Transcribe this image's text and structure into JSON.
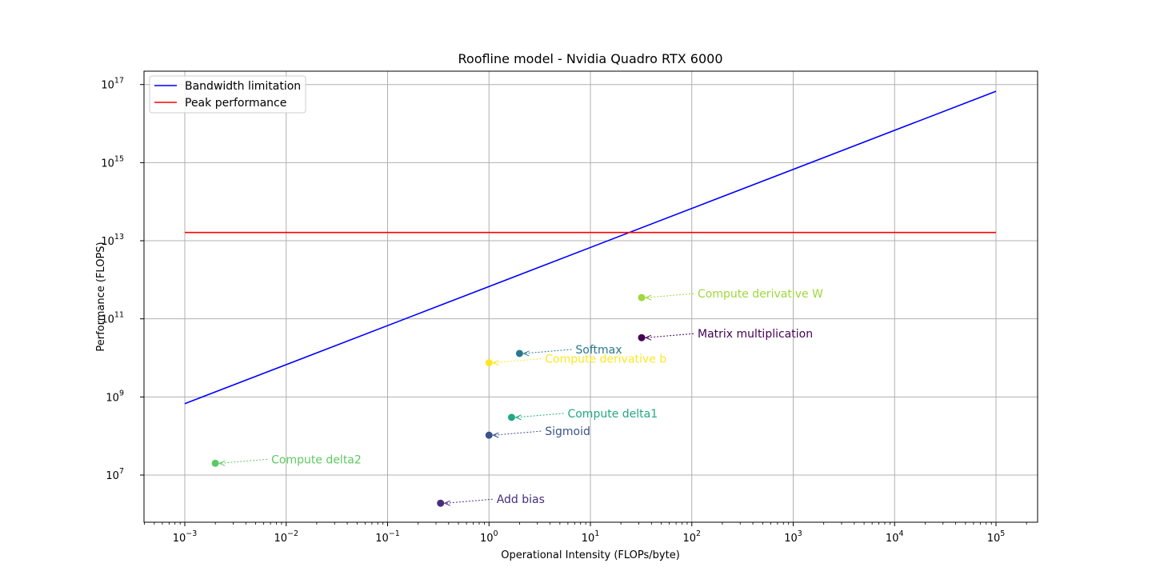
{
  "chart_data": {
    "type": "line",
    "title": "Roofline model - Nvidia Quadro RTX 6000",
    "xlabel": "Operational Intensity (FLOPs/byte)",
    "ylabel": "Performance (FLOPS)",
    "xscale": "log",
    "yscale": "log",
    "grid": true,
    "legend_position": "top-left",
    "x_ticks": [
      "10^-3",
      "10^-2",
      "10^-1",
      "10^0",
      "10^1",
      "10^2",
      "10^3",
      "10^4",
      "10^5"
    ],
    "y_ticks": [
      "10^7",
      "10^9",
      "10^11",
      "10^13",
      "10^15",
      "10^17"
    ],
    "series": [
      {
        "name": "Bandwidth limitation",
        "color": "#0000ff",
        "x": [
          0.001,
          100000
        ],
        "y": [
          672000000,
          67200000000000000
        ]
      },
      {
        "name": "Peak performance",
        "color": "#ff0000",
        "x": [
          0.001,
          100000
        ],
        "y": [
          16300000000000,
          16300000000000
        ]
      }
    ],
    "points": [
      {
        "label": "Compute derivative W",
        "x": 32,
        "y": 350000000000,
        "color": "#9ed83a"
      },
      {
        "label": "Matrix multiplication",
        "x": 32,
        "y": 33000000000,
        "color": "#440154"
      },
      {
        "label": "Softmax",
        "x": 2,
        "y": 13000000000,
        "color": "#2a788e"
      },
      {
        "label": "Compute derivative b",
        "x": 1,
        "y": 7500000000,
        "color": "#fde725"
      },
      {
        "label": "Compute delta1",
        "x": 1.67,
        "y": 300000000,
        "color": "#22a884"
      },
      {
        "label": "Sigmoid",
        "x": 1,
        "y": 105000000,
        "color": "#3b528b"
      },
      {
        "label": "Compute delta2",
        "x": 0.002,
        "y": 20000000,
        "color": "#5ec962"
      },
      {
        "label": "Add bias",
        "x": 0.333,
        "y": 1900000,
        "color": "#472d7b"
      }
    ]
  }
}
